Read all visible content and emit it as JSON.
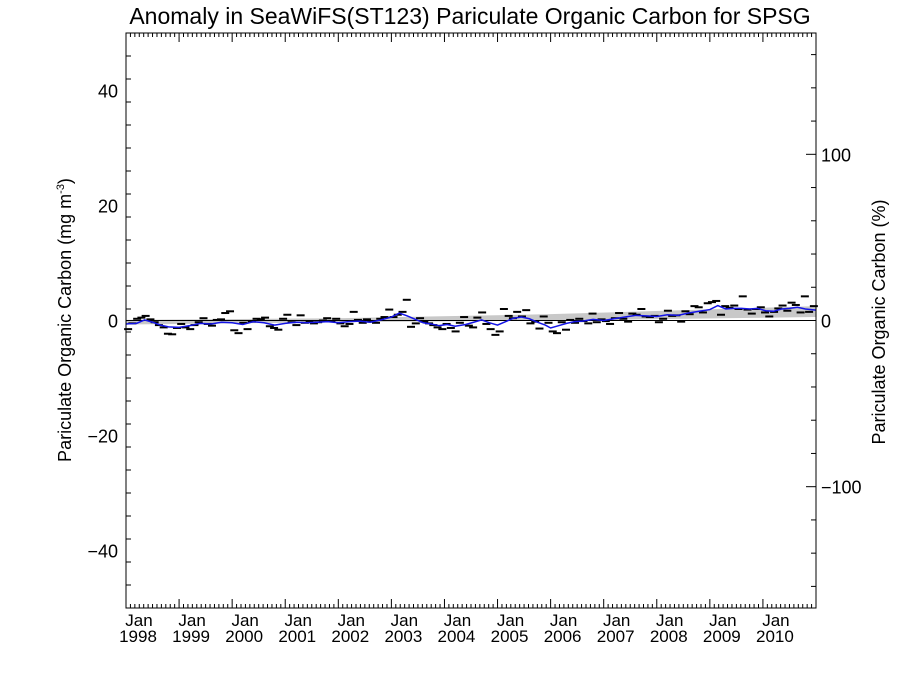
{
  "chart_data": {
    "type": "line",
    "title": "Anomaly in SeaWiFS(ST123) Pariculate Organic Carbon for SPSG",
    "ylabel_left": {
      "base": "Pariculate Organic Carbon (mg m",
      "sup": "-3",
      "end": ")"
    },
    "ylabel_right": "Pariculate Organic Carbon (%)",
    "xlim": [
      1998.0,
      2011.0
    ],
    "ylim_left": [
      -50,
      50
    ],
    "ylim_right": [
      -173,
      173
    ],
    "x_ticks": [
      {
        "x": 1998,
        "month": "Jan",
        "year": "1998"
      },
      {
        "x": 1999,
        "month": "Jan",
        "year": "1999"
      },
      {
        "x": 2000,
        "month": "Jan",
        "year": "2000"
      },
      {
        "x": 2001,
        "month": "Jan",
        "year": "2001"
      },
      {
        "x": 2002,
        "month": "Jan",
        "year": "2002"
      },
      {
        "x": 2003,
        "month": "Jan",
        "year": "2003"
      },
      {
        "x": 2004,
        "month": "Jan",
        "year": "2004"
      },
      {
        "x": 2005,
        "month": "Jan",
        "year": "2005"
      },
      {
        "x": 2006,
        "month": "Jan",
        "year": "2006"
      },
      {
        "x": 2007,
        "month": "Jan",
        "year": "2007"
      },
      {
        "x": 2008,
        "month": "Jan",
        "year": "2008"
      },
      {
        "x": 2009,
        "month": "Jan",
        "year": "2009"
      },
      {
        "x": 2010,
        "month": "Jan",
        "year": "2010"
      }
    ],
    "y_ticks_left": [
      {
        "v": 40,
        "label": "40"
      },
      {
        "v": 20,
        "label": "20"
      },
      {
        "v": 0,
        "label": "0"
      },
      {
        "v": -20,
        "label": "−20"
      },
      {
        "v": -40,
        "label": "−40"
      }
    ],
    "y_ticks_right": [
      {
        "v": 100,
        "label": "100"
      },
      {
        "v": 0,
        "label": "0"
      },
      {
        "v": -100,
        "label": "−100"
      }
    ],
    "series": [
      {
        "kind": "monthly_anomaly_markers",
        "color": "#000000",
        "points": [
          [
            1998.04,
            -1.5
          ],
          [
            1998.12,
            -0.5
          ],
          [
            1998.21,
            0.3
          ],
          [
            1998.29,
            0.5
          ],
          [
            1998.37,
            0.8
          ],
          [
            1998.46,
            0.2
          ],
          [
            1998.54,
            -0.3
          ],
          [
            1998.62,
            -0.8
          ],
          [
            1998.71,
            -1.2
          ],
          [
            1998.79,
            -2.3
          ],
          [
            1998.87,
            -2.4
          ],
          [
            1998.96,
            -1.3
          ],
          [
            1999.04,
            -0.6
          ],
          [
            1999.12,
            -1.2
          ],
          [
            1999.21,
            -1.5
          ],
          [
            1999.29,
            -0.8
          ],
          [
            1999.37,
            -0.3
          ],
          [
            1999.46,
            0.4
          ],
          [
            1999.54,
            -0.6
          ],
          [
            1999.62,
            -0.9
          ],
          [
            1999.71,
            0.1
          ],
          [
            1999.79,
            0.2
          ],
          [
            1999.87,
            1.3
          ],
          [
            1999.96,
            1.6
          ],
          [
            2000.04,
            -1.7
          ],
          [
            2000.12,
            -2.2
          ],
          [
            2000.21,
            -0.4
          ],
          [
            2000.29,
            -1.5
          ],
          [
            2000.37,
            -0.2
          ],
          [
            2000.46,
            0.3
          ],
          [
            2000.54,
            0.2
          ],
          [
            2000.62,
            0.5
          ],
          [
            2000.71,
            -1.0
          ],
          [
            2000.79,
            -1.3
          ],
          [
            2000.87,
            -1.6
          ],
          [
            2000.96,
            0.3
          ],
          [
            2001.04,
            1.0
          ],
          [
            2001.12,
            -0.3
          ],
          [
            2001.21,
            -0.8
          ],
          [
            2001.29,
            0.9
          ],
          [
            2001.37,
            -0.4
          ],
          [
            2001.46,
            -0.2
          ],
          [
            2001.54,
            -0.5
          ],
          [
            2001.62,
            -0.3
          ],
          [
            2001.71,
            0.0
          ],
          [
            2001.79,
            0.4
          ],
          [
            2001.87,
            -0.1
          ],
          [
            2001.96,
            0.3
          ],
          [
            2002.04,
            -0.5
          ],
          [
            2002.12,
            -1.0
          ],
          [
            2002.21,
            -0.6
          ],
          [
            2002.29,
            1.5
          ],
          [
            2002.37,
            0.1
          ],
          [
            2002.46,
            -0.4
          ],
          [
            2002.54,
            0.2
          ],
          [
            2002.62,
            -0.2
          ],
          [
            2002.71,
            -0.4
          ],
          [
            2002.79,
            0.3
          ],
          [
            2002.87,
            0.6
          ],
          [
            2002.96,
            1.9
          ],
          [
            2003.04,
            0.6
          ],
          [
            2003.12,
            1.0
          ],
          [
            2003.21,
            1.5
          ],
          [
            2003.29,
            3.6
          ],
          [
            2003.37,
            -1.1
          ],
          [
            2003.46,
            -0.5
          ],
          [
            2003.54,
            0.4
          ],
          [
            2003.62,
            -0.2
          ],
          [
            2003.71,
            -0.5
          ],
          [
            2003.79,
            -0.8
          ],
          [
            2003.87,
            -1.2
          ],
          [
            2003.96,
            -1.5
          ],
          [
            2004.04,
            -0.6
          ],
          [
            2004.12,
            -1.3
          ],
          [
            2004.21,
            -1.9
          ],
          [
            2004.29,
            -0.4
          ],
          [
            2004.37,
            0.6
          ],
          [
            2004.46,
            -0.9
          ],
          [
            2004.54,
            -1.2
          ],
          [
            2004.62,
            0.5
          ],
          [
            2004.71,
            1.4
          ],
          [
            2004.79,
            -0.6
          ],
          [
            2004.87,
            -1.5
          ],
          [
            2004.96,
            -2.5
          ],
          [
            2005.04,
            -1.9
          ],
          [
            2005.12,
            2.0
          ],
          [
            2005.21,
            0.8
          ],
          [
            2005.29,
            0.4
          ],
          [
            2005.37,
            1.5
          ],
          [
            2005.46,
            0.7
          ],
          [
            2005.54,
            1.8
          ],
          [
            2005.62,
            -0.5
          ],
          [
            2005.71,
            -0.2
          ],
          [
            2005.79,
            -1.4
          ],
          [
            2005.87,
            0.7
          ],
          [
            2005.96,
            -0.4
          ],
          [
            2006.04,
            -1.9
          ],
          [
            2006.12,
            -2.2
          ],
          [
            2006.21,
            -0.3
          ],
          [
            2006.29,
            -1.6
          ],
          [
            2006.37,
            0.1
          ],
          [
            2006.46,
            -0.4
          ],
          [
            2006.54,
            0.3
          ],
          [
            2006.62,
            -0.1
          ],
          [
            2006.71,
            -0.5
          ],
          [
            2006.79,
            1.2
          ],
          [
            2006.87,
            -0.3
          ],
          [
            2006.96,
            0.2
          ],
          [
            2007.04,
            -0.1
          ],
          [
            2007.12,
            -0.6
          ],
          [
            2007.21,
            0.4
          ],
          [
            2007.29,
            1.3
          ],
          [
            2007.37,
            0.3
          ],
          [
            2007.46,
            -0.2
          ],
          [
            2007.54,
            1.2
          ],
          [
            2007.62,
            1.0
          ],
          [
            2007.71,
            2.0
          ],
          [
            2007.79,
            0.7
          ],
          [
            2007.87,
            0.6
          ],
          [
            2007.96,
            0.8
          ],
          [
            2008.04,
            -0.3
          ],
          [
            2008.12,
            0.3
          ],
          [
            2008.21,
            1.7
          ],
          [
            2008.29,
            0.8
          ],
          [
            2008.37,
            0.9
          ],
          [
            2008.46,
            -0.2
          ],
          [
            2008.54,
            1.6
          ],
          [
            2008.62,
            1.1
          ],
          [
            2008.71,
            2.5
          ],
          [
            2008.79,
            2.3
          ],
          [
            2008.87,
            1.4
          ],
          [
            2008.96,
            3.0
          ],
          [
            2009.04,
            3.2
          ],
          [
            2009.12,
            3.4
          ],
          [
            2009.21,
            1.0
          ],
          [
            2009.29,
            2.5
          ],
          [
            2009.37,
            2.2
          ],
          [
            2009.46,
            2.6
          ],
          [
            2009.54,
            2.0
          ],
          [
            2009.62,
            4.2
          ],
          [
            2009.71,
            1.9
          ],
          [
            2009.79,
            1.2
          ],
          [
            2009.87,
            2.0
          ],
          [
            2009.96,
            2.3
          ],
          [
            2010.04,
            1.4
          ],
          [
            2010.12,
            0.7
          ],
          [
            2010.21,
            1.5
          ],
          [
            2010.29,
            2.1
          ],
          [
            2010.37,
            2.6
          ],
          [
            2010.46,
            1.7
          ],
          [
            2010.54,
            3.1
          ],
          [
            2010.62,
            2.7
          ],
          [
            2010.71,
            1.4
          ],
          [
            2010.79,
            4.2
          ],
          [
            2010.87,
            1.5
          ],
          [
            2010.96,
            2.5
          ]
        ]
      },
      {
        "kind": "running_mean",
        "color": "#1414e6",
        "points": [
          [
            1998.0,
            -0.6
          ],
          [
            1998.2,
            -0.5
          ],
          [
            1998.35,
            0.1
          ],
          [
            1998.5,
            -0.3
          ],
          [
            1998.65,
            -0.8
          ],
          [
            1998.8,
            -1.1
          ],
          [
            1999.0,
            -1.2
          ],
          [
            1999.2,
            -0.9
          ],
          [
            1999.4,
            -0.5
          ],
          [
            1999.6,
            -0.6
          ],
          [
            1999.8,
            -0.3
          ],
          [
            2000.0,
            -0.4
          ],
          [
            2000.2,
            -0.7
          ],
          [
            2000.4,
            -0.2
          ],
          [
            2000.6,
            -0.4
          ],
          [
            2000.8,
            -0.8
          ],
          [
            2001.0,
            -0.5
          ],
          [
            2001.2,
            -0.3
          ],
          [
            2001.4,
            -0.4
          ],
          [
            2001.6,
            -0.3
          ],
          [
            2001.8,
            -0.2
          ],
          [
            2002.0,
            -0.4
          ],
          [
            2002.2,
            -0.2
          ],
          [
            2002.4,
            -0.1
          ],
          [
            2002.6,
            -0.3
          ],
          [
            2002.8,
            0.1
          ],
          [
            2003.0,
            0.6
          ],
          [
            2003.15,
            1.3
          ],
          [
            2003.3,
            0.8
          ],
          [
            2003.45,
            0.2
          ],
          [
            2003.6,
            -0.4
          ],
          [
            2003.75,
            -0.6
          ],
          [
            2003.9,
            -0.9
          ],
          [
            2004.05,
            -0.7
          ],
          [
            2004.2,
            -1.0
          ],
          [
            2004.4,
            -0.7
          ],
          [
            2004.55,
            -0.3
          ],
          [
            2004.7,
            0.1
          ],
          [
            2004.85,
            -0.4
          ],
          [
            2005.0,
            -0.8
          ],
          [
            2005.15,
            -0.2
          ],
          [
            2005.3,
            0.4
          ],
          [
            2005.45,
            0.6
          ],
          [
            2005.6,
            0.3
          ],
          [
            2005.75,
            -0.3
          ],
          [
            2005.9,
            -0.8
          ],
          [
            2006.0,
            -1.3
          ],
          [
            2006.15,
            -0.9
          ],
          [
            2006.3,
            -0.5
          ],
          [
            2006.45,
            -0.2
          ],
          [
            2006.6,
            -0.1
          ],
          [
            2006.8,
            0.2
          ],
          [
            2007.0,
            0.0
          ],
          [
            2007.2,
            0.3
          ],
          [
            2007.4,
            0.6
          ],
          [
            2007.6,
            0.9
          ],
          [
            2007.8,
            0.8
          ],
          [
            2008.0,
            0.7
          ],
          [
            2008.2,
            1.0
          ],
          [
            2008.4,
            0.9
          ],
          [
            2008.6,
            1.3
          ],
          [
            2008.8,
            1.6
          ],
          [
            2009.0,
            1.9
          ],
          [
            2009.15,
            2.6
          ],
          [
            2009.3,
            2.0
          ],
          [
            2009.45,
            2.1
          ],
          [
            2009.6,
            2.1
          ],
          [
            2009.75,
            2.0
          ],
          [
            2009.9,
            2.1
          ],
          [
            2010.05,
            1.7
          ],
          [
            2010.2,
            1.6
          ],
          [
            2010.35,
            2.0
          ],
          [
            2010.5,
            2.1
          ],
          [
            2010.65,
            2.3
          ],
          [
            2010.8,
            2.0
          ],
          [
            2011.0,
            1.8
          ]
        ]
      },
      {
        "kind": "trend_band",
        "color": "#c8c8c8",
        "points": [
          [
            1998.0,
            -0.7,
            0.1
          ],
          [
            2002.0,
            -0.3,
            0.4
          ],
          [
            2006.0,
            0.0,
            1.1
          ],
          [
            2011.0,
            0.6,
            2.5
          ]
        ]
      }
    ],
    "zero_line": true,
    "grid": false
  }
}
